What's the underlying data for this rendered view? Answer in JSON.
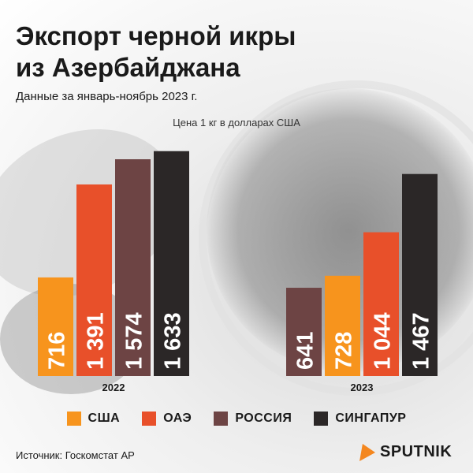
{
  "title_line1": "Экспорт черной икры",
  "title_line2": "из Азербайджана",
  "subtitle": "Данные за январь-ноябрь 2023 г.",
  "source": "Источник: Госкомстат АР",
  "logo_text": "SPUTNIK",
  "legend": [
    {
      "label": "США",
      "color": "#f7941d"
    },
    {
      "label": "ОАЭ",
      "color": "#e8502a"
    },
    {
      "label": "РОССИЯ",
      "color": "#6d4444"
    },
    {
      "label": "СИНГАПУР",
      "color": "#2b2727"
    }
  ],
  "chart_data": {
    "type": "bar",
    "ylabel": "Цена 1 кг в долларах США",
    "ylim": [
      0,
      1700
    ],
    "groups": [
      {
        "label": "2022",
        "bars": [
          {
            "series": "США",
            "value": 716,
            "value_label": "716",
            "color": "#f7941d"
          },
          {
            "series": "ОАЭ",
            "value": 1391,
            "value_label": "1 391",
            "color": "#e8502a"
          },
          {
            "series": "РОССИЯ",
            "value": 1574,
            "value_label": "1 574",
            "color": "#6d4444"
          },
          {
            "series": "СИНГАПУР",
            "value": 1633,
            "value_label": "1 633",
            "color": "#2b2727"
          }
        ]
      },
      {
        "label": "2023",
        "bars": [
          {
            "series": "РОССИЯ",
            "value": 641,
            "value_label": "641",
            "color": "#6d4444"
          },
          {
            "series": "США",
            "value": 728,
            "value_label": "728",
            "color": "#f7941d"
          },
          {
            "series": "ОАЭ",
            "value": 1044,
            "value_label": "1 044",
            "color": "#e8502a"
          },
          {
            "series": "СИНГАПУР",
            "value": 1467,
            "value_label": "1 467",
            "color": "#2b2727"
          }
        ]
      }
    ]
  }
}
